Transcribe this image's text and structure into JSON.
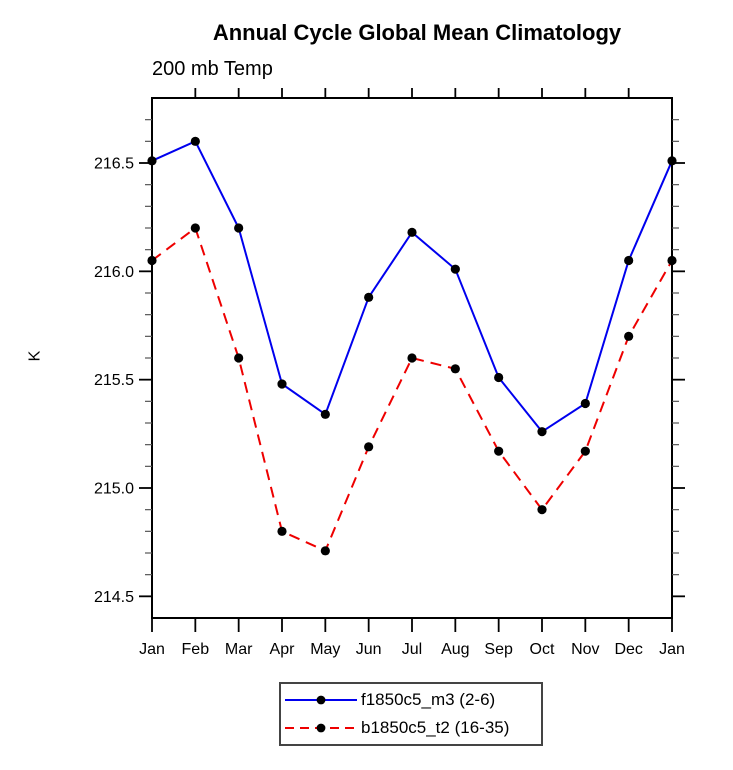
{
  "header": {
    "title": "Annual Cycle Global Mean Climatology",
    "subtitle_left": "200 mb Temp"
  },
  "colors": {
    "series1": "#0000ee",
    "series2": "#ee0000",
    "marker": "#000000",
    "axis": "#000000",
    "minor_tick": "#555555",
    "legend_border": "#444444",
    "background": "#ffffff"
  },
  "chart_data": {
    "type": "line",
    "title": "Annual Cycle Global Mean Climatology",
    "subtitle_left": "200 mb Temp",
    "xlabel": "",
    "ylabel": "K",
    "categories": [
      "Jan",
      "Feb",
      "Mar",
      "Apr",
      "May",
      "Jun",
      "Jul",
      "Aug",
      "Sep",
      "Oct",
      "Nov",
      "Dec",
      "Jan"
    ],
    "series": [
      {
        "name": "f1850c5_m3 (2-6)",
        "color": "#0000ee",
        "style": "solid",
        "marker": "filled-circle",
        "values": [
          216.51,
          216.6,
          216.2,
          215.48,
          215.34,
          215.88,
          216.18,
          216.01,
          215.51,
          215.26,
          215.39,
          216.05,
          216.51
        ]
      },
      {
        "name": "b1850c5_t2 (16-35)",
        "color": "#ee0000",
        "style": "dashed",
        "marker": "filled-circle",
        "values": [
          216.05,
          216.2,
          215.6,
          214.8,
          214.71,
          215.19,
          215.6,
          215.55,
          215.17,
          214.9,
          215.17,
          215.7,
          216.05
        ]
      }
    ],
    "ylim": [
      214.4,
      216.8
    ],
    "yticks_major": [
      214.5,
      215.0,
      215.5,
      216.0,
      216.5
    ],
    "ytick_labels": [
      "214.5",
      "215.0",
      "215.5",
      "216.0",
      "216.5"
    ],
    "y_minor_step": 0.1,
    "grid": false,
    "legend_position": "bottom-center"
  }
}
